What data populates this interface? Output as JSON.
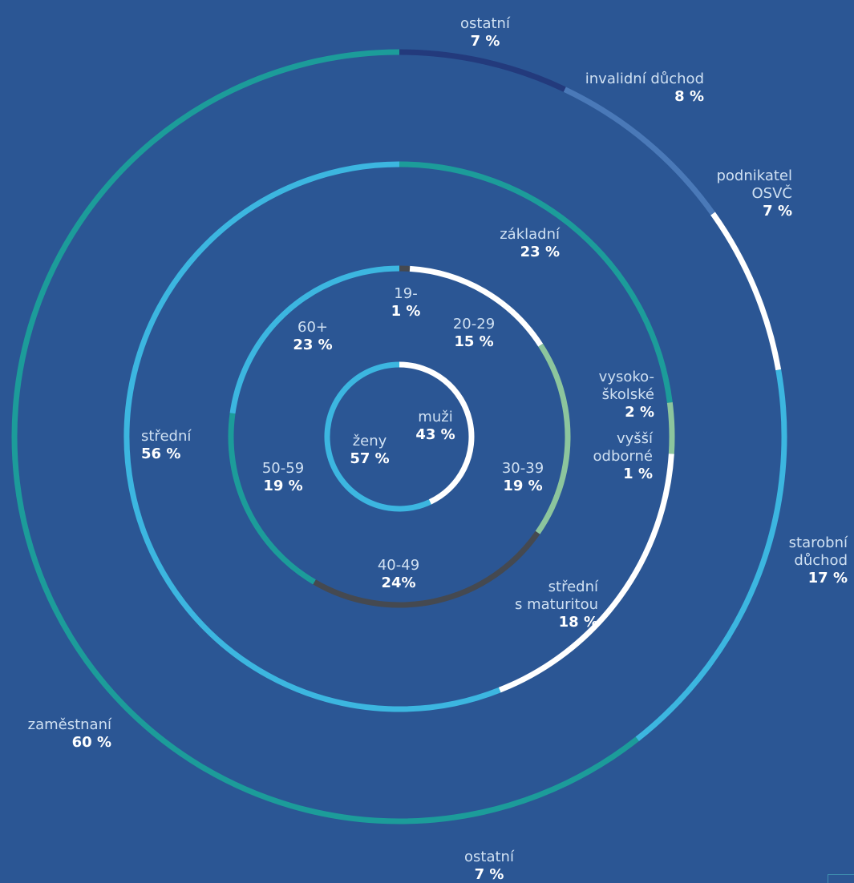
{
  "chart_data": {
    "type": "pie",
    "style": "concentric donut rings",
    "colors": {
      "background": "#2b5694",
      "light_blue": "#3cb6e0",
      "teal": "#1c9c9a",
      "white": "#ffffff",
      "light_green": "#8cc59d",
      "dark_gray": "#454950",
      "dark_navy": "#233a7c",
      "mid_blue": "#4a79b8"
    },
    "rings": [
      {
        "name": "gender",
        "segments": [
          {
            "label": "muži",
            "value_label": "43 %",
            "value": 43,
            "color": "#ffffff"
          },
          {
            "label": "ženy",
            "value_label": "57 %",
            "value": 57,
            "color": "#3cb6e0"
          }
        ]
      },
      {
        "name": "age",
        "segments": [
          {
            "label": "19-",
            "value_label": "1 %",
            "value": 1,
            "color": "#454950"
          },
          {
            "label": "20-29",
            "value_label": "15 %",
            "value": 15,
            "color": "#ffffff"
          },
          {
            "label": "30-39",
            "value_label": "19 %",
            "value": 19,
            "color": "#8cc59d"
          },
          {
            "label": "40-49",
            "value_label": "24%",
            "value": 24,
            "color": "#454950"
          },
          {
            "label": "50-59",
            "value_label": "19 %",
            "value": 19,
            "color": "#1c9c9a"
          },
          {
            "label": "60+",
            "value_label": "23 %",
            "value": 23,
            "color": "#3cb6e0"
          }
        ]
      },
      {
        "name": "education",
        "segments": [
          {
            "label": "základní",
            "value_label": "23 %",
            "value": 23,
            "color": "#1c9c9a"
          },
          {
            "label": "vysoko-školské",
            "value_label": "2 %",
            "value": 2,
            "color": "#8cc59d"
          },
          {
            "label": "vyšší odborné",
            "value_label": "1 %",
            "value": 1,
            "color": "#8cc59d"
          },
          {
            "label": "střední s maturitou",
            "value_label": "18 %",
            "value": 18,
            "color": "#ffffff"
          },
          {
            "label": "střední",
            "value_label": "56 %",
            "value": 56,
            "color": "#3cb6e0"
          }
        ]
      },
      {
        "name": "employment",
        "segments": [
          {
            "label": "ostatní",
            "value_label": "7 %",
            "value": 7,
            "color": "#233a7c"
          },
          {
            "label": "invalidní důchod",
            "value_label": "8 %",
            "value": 8,
            "color": "#4a79b8"
          },
          {
            "label": "podnikatel OSVČ",
            "value_label": "7 %",
            "value": 7,
            "color": "#ffffff"
          },
          {
            "label": "starobní důchod",
            "value_label": "17 %",
            "value": 17,
            "color": "#3cb6e0"
          },
          {
            "label": "zaměstnaní",
            "value_label": "60 %",
            "value": 60,
            "color": "#1c9c9a"
          }
        ]
      }
    ],
    "text_labels": [
      {
        "lines": [
          "ostatní"
        ],
        "value": "7 %",
        "anchor": "middle",
        "at": [
          605,
          35
        ]
      },
      {
        "lines": [
          "invalidní důchod"
        ],
        "value": "8 %",
        "anchor": "end",
        "at": [
          878,
          104
        ]
      },
      {
        "lines": [
          "podnikatel",
          "OSVČ"
        ],
        "value": "7 %",
        "anchor": "end",
        "at": [
          988,
          225
        ]
      },
      {
        "lines": [
          "starobní",
          "důchod"
        ],
        "value": "17 %",
        "anchor": "end",
        "at": [
          1057,
          683
        ]
      },
      {
        "lines": [
          "zaměstnaní"
        ],
        "value": "60 %",
        "anchor": "end",
        "at": [
          139,
          910
        ]
      },
      {
        "lines": [
          "ostatní"
        ],
        "value": "7 %",
        "anchor": "middle",
        "at": [
          610,
          1075
        ]
      },
      {
        "lines": [
          "základní"
        ],
        "value": "23 %",
        "anchor": "end",
        "at": [
          698,
          298
        ]
      },
      {
        "lines": [
          "vysoko-",
          "školské"
        ],
        "value": "2 %",
        "anchor": "end",
        "at": [
          816,
          476
        ]
      },
      {
        "lines": [
          "vyšší",
          "odborné"
        ],
        "value": "1 %",
        "anchor": "end",
        "at": [
          814,
          553
        ]
      },
      {
        "lines": [
          "střední",
          "s maturitou"
        ],
        "value": "18 %",
        "anchor": "end",
        "at": [
          746,
          738
        ]
      },
      {
        "lines": [
          "střední"
        ],
        "value": "56 %",
        "anchor": "start",
        "at": [
          176,
          550
        ]
      },
      {
        "lines": [
          "19-"
        ],
        "value": "1 %",
        "anchor": "middle",
        "at": [
          506,
          372
        ]
      },
      {
        "lines": [
          "20-29"
        ],
        "value": "15 %",
        "anchor": "middle",
        "at": [
          591,
          410
        ]
      },
      {
        "lines": [
          "30-39"
        ],
        "value": "19 %",
        "anchor": "middle",
        "at": [
          652,
          590
        ]
      },
      {
        "lines": [
          "40-49"
        ],
        "value": "24%",
        "anchor": "middle",
        "at": [
          497,
          711
        ]
      },
      {
        "lines": [
          "50-59"
        ],
        "value": "19 %",
        "anchor": "middle",
        "at": [
          353,
          590
        ]
      },
      {
        "lines": [
          "60+"
        ],
        "value": "23 %",
        "anchor": "middle",
        "at": [
          390,
          414
        ]
      },
      {
        "lines": [
          "muži"
        ],
        "value": "43 %",
        "anchor": "middle",
        "at": [
          543,
          526
        ]
      },
      {
        "lines": [
          "ženy"
        ],
        "value": "57 %",
        "anchor": "middle",
        "at": [
          461,
          556
        ]
      }
    ]
  }
}
